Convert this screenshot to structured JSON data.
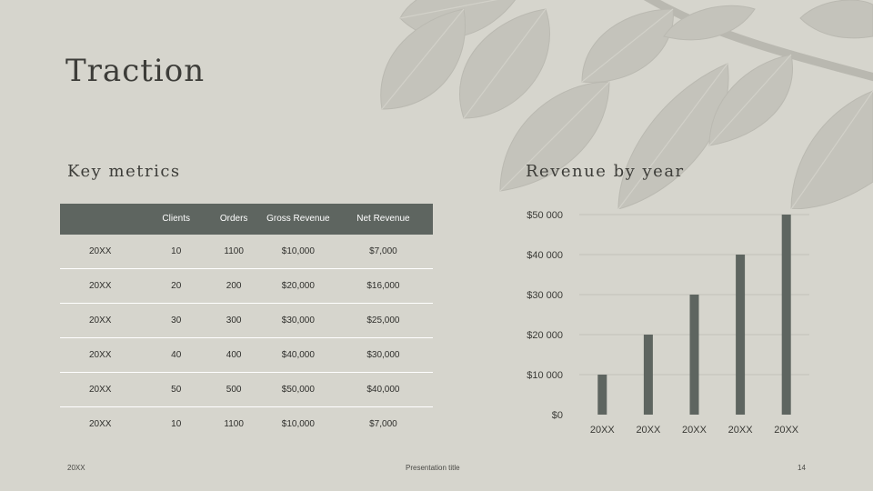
{
  "slide": {
    "title": "Traction",
    "left_heading": "Key metrics",
    "right_heading": "Revenue by year"
  },
  "table": {
    "headers": [
      "",
      "Clients",
      "Orders",
      "Gross Revenue",
      "Net Revenue"
    ],
    "rows": [
      [
        "20XX",
        "10",
        "1100",
        "$10,000",
        "$7,000"
      ],
      [
        "20XX",
        "20",
        "200",
        "$20,000",
        "$16,000"
      ],
      [
        "20XX",
        "30",
        "300",
        "$30,000",
        "$25,000"
      ],
      [
        "20XX",
        "40",
        "400",
        "$40,000",
        "$30,000"
      ],
      [
        "20XX",
        "50",
        "500",
        "$50,000",
        "$40,000"
      ],
      [
        "20XX",
        "10",
        "1100",
        "$10,000",
        "$7,000"
      ]
    ]
  },
  "chart_data": {
    "type": "bar",
    "categories": [
      "20XX",
      "20XX",
      "20XX",
      "20XX",
      "20XX"
    ],
    "values": [
      10000,
      20000,
      30000,
      40000,
      50000
    ],
    "ylim": [
      0,
      50000
    ],
    "yticks": [
      0,
      10000,
      20000,
      30000,
      40000,
      50000
    ],
    "ytick_labels": [
      "$0",
      "$10 000",
      "$20 000",
      "$30 000",
      "$40 000",
      "$50 000"
    ],
    "grid": true,
    "bar_color": "#5e6560"
  },
  "footer": {
    "date": "20XX",
    "presentation_title": "Presentation title",
    "page_number": "14"
  },
  "colors": {
    "background": "#d6d5cd",
    "table_header": "#5e6560",
    "leaf_pattern": "#c1c0b8"
  }
}
